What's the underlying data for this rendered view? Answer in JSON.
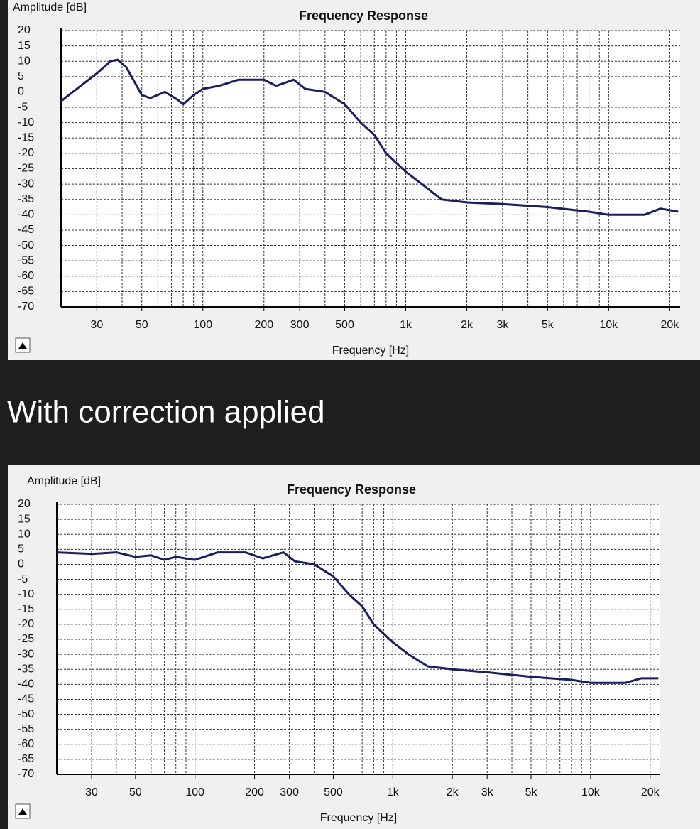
{
  "heading": "With correction applied",
  "chart_data": [
    {
      "type": "line",
      "title": "Frequency Response",
      "x_label": "Frequency [Hz]",
      "y_label": "Amplitude [dB]",
      "xscale": "log",
      "xlim": [
        20,
        22500
      ],
      "ylim": [
        -70,
        20
      ],
      "xticks": [
        30,
        50,
        100,
        200,
        300,
        500,
        {
          "value": 1000,
          "label": "1k"
        },
        {
          "value": 2000,
          "label": "2k"
        },
        {
          "value": 3000,
          "label": "3k"
        },
        {
          "value": 5000,
          "label": "5k"
        },
        {
          "value": 10000,
          "label": "10k"
        },
        {
          "value": 20000,
          "label": "20k"
        }
      ],
      "x_grid": [
        20,
        30,
        40,
        50,
        60,
        70,
        80,
        90,
        100,
        200,
        300,
        400,
        500,
        600,
        700,
        800,
        900,
        1000,
        2000,
        3000,
        4000,
        5000,
        6000,
        7000,
        8000,
        9000,
        10000,
        20000
      ],
      "yticks": [
        20,
        15,
        10,
        5,
        0,
        -5,
        -10,
        -15,
        -20,
        -25,
        -30,
        -35,
        -40,
        -45,
        -50,
        -55,
        -60,
        -65,
        -70
      ],
      "grid": true,
      "color": "#1a1f5e",
      "x": [
        20,
        25,
        30,
        35,
        38,
        42,
        50,
        55,
        65,
        75,
        80,
        90,
        100,
        120,
        150,
        200,
        230,
        280,
        320,
        400,
        500,
        600,
        700,
        800,
        1000,
        1200,
        1500,
        2000,
        3000,
        5000,
        8000,
        10000,
        15000,
        18000,
        22000
      ],
      "values": [
        -3,
        2,
        6,
        10,
        10.5,
        8,
        -1,
        -2,
        0,
        -2.5,
        -4,
        -1,
        1,
        2,
        4,
        4,
        2,
        4,
        1,
        0,
        -4,
        -10,
        -14,
        -20,
        -26,
        -30,
        -35,
        -36,
        -36.5,
        -37.5,
        -39,
        -40,
        -40,
        -38,
        -39
      ]
    },
    {
      "type": "line",
      "title": "Frequency Response",
      "x_label": "Frequency [Hz]",
      "y_label": "Amplitude [dB]",
      "xscale": "log",
      "xlim": [
        20,
        22500
      ],
      "ylim": [
        -70,
        20
      ],
      "xticks": [
        30,
        50,
        100,
        200,
        300,
        500,
        {
          "value": 1000,
          "label": "1k"
        },
        {
          "value": 2000,
          "label": "2k"
        },
        {
          "value": 3000,
          "label": "3k"
        },
        {
          "value": 5000,
          "label": "5k"
        },
        {
          "value": 10000,
          "label": "10k"
        },
        {
          "value": 20000,
          "label": "20k"
        }
      ],
      "x_grid": [
        20,
        30,
        40,
        50,
        60,
        70,
        80,
        90,
        100,
        200,
        300,
        400,
        500,
        600,
        700,
        800,
        900,
        1000,
        2000,
        3000,
        4000,
        5000,
        6000,
        7000,
        8000,
        9000,
        10000,
        20000
      ],
      "yticks": [
        20,
        15,
        10,
        5,
        0,
        -5,
        -10,
        -15,
        -20,
        -25,
        -30,
        -35,
        -40,
        -45,
        -50,
        -55,
        -60,
        -65,
        -70
      ],
      "grid": true,
      "color": "#1a1f5e",
      "x": [
        20,
        30,
        40,
        50,
        60,
        70,
        80,
        100,
        130,
        180,
        220,
        280,
        320,
        400,
        500,
        600,
        700,
        800,
        1000,
        1200,
        1500,
        2000,
        3000,
        5000,
        8000,
        10000,
        15000,
        18000,
        22000
      ],
      "values": [
        4,
        3.5,
        4,
        2.5,
        3,
        1.5,
        2.5,
        1.5,
        4,
        4,
        2,
        4,
        1,
        0,
        -4,
        -10,
        -14,
        -20,
        -26,
        -30,
        -34,
        -35,
        -36,
        -37.5,
        -38.5,
        -39.5,
        -39.5,
        -38,
        -38
      ]
    }
  ]
}
